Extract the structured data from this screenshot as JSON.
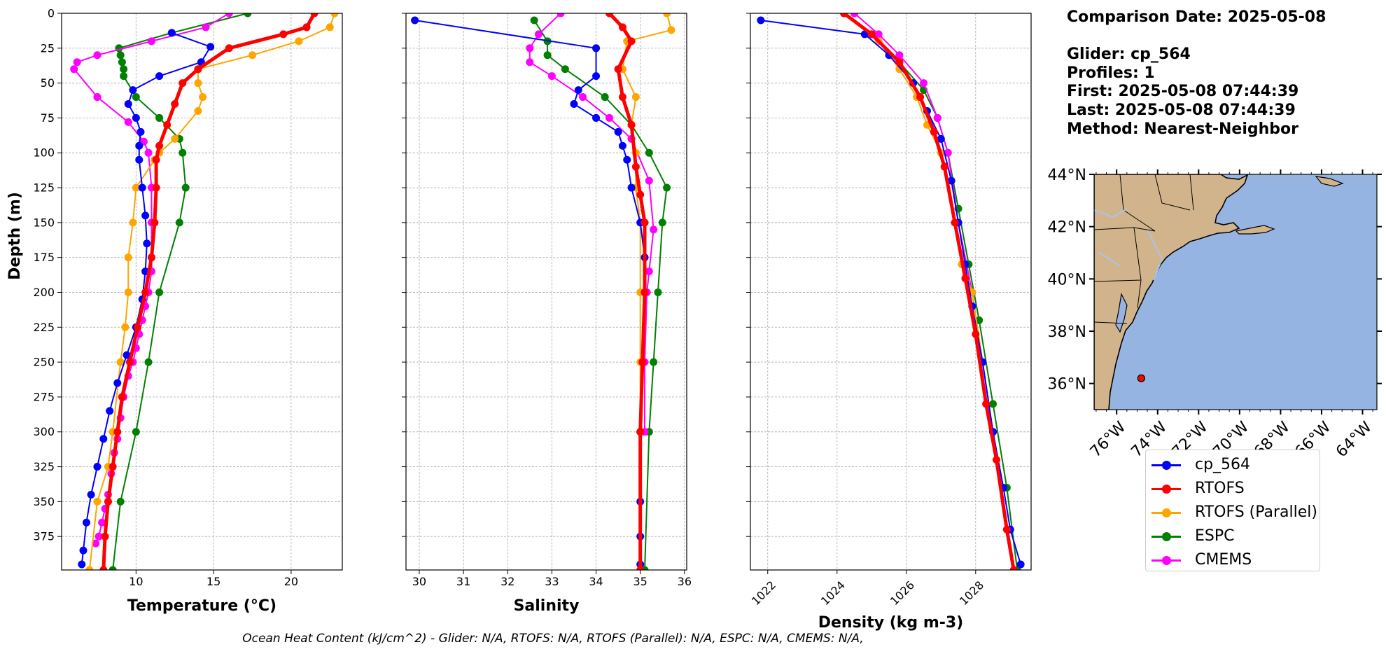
{
  "info": {
    "comparison_date": "Comparison Date: 2025-05-08",
    "glider": "Glider: cp_564",
    "profiles": "Profiles: 1",
    "first": "First: 2025-05-08 07:44:39",
    "last": "Last: 2025-05-08 07:44:39",
    "method": "Method: Nearest-Neighbor"
  },
  "footer": "Ocean Heat Content (kJ/cm^2) - Glider: N/A,  RTOFS: N/A,  RTOFS (Parallel): N/A,  ESPC: N/A,  CMEMS: N/A,",
  "legend": [
    {
      "label": "cp_564",
      "color": "#0000ff"
    },
    {
      "label": "RTOFS",
      "color": "#ff0000"
    },
    {
      "label": "RTOFS (Parallel)",
      "color": "#ffa500"
    },
    {
      "label": "ESPC",
      "color": "#008000"
    },
    {
      "label": "CMEMS",
      "color": "#ff00ff"
    }
  ],
  "chart_data": [
    {
      "type": "line",
      "xlabel": "Temperature (°C)",
      "ylabel": "Depth (m)",
      "xlim": [
        5.2,
        23.3
      ],
      "ylim": [
        399,
        0
      ],
      "xticks": [
        10,
        15,
        20
      ],
      "yticks": [
        0,
        25,
        50,
        75,
        100,
        125,
        150,
        175,
        200,
        225,
        250,
        275,
        300,
        325,
        350,
        375
      ],
      "grid": true,
      "series": [
        {
          "name": "cp_564",
          "color": "#0000ff",
          "x": [
            12.3,
            14.8,
            14.2,
            11.5,
            9.8,
            9.5,
            10.0,
            10.3,
            10.2,
            10.2,
            10.4,
            10.6,
            10.7,
            10.6,
            10.4,
            10.0,
            9.4,
            8.8,
            8.3,
            7.9,
            7.5,
            7.1,
            6.8,
            6.6,
            6.5
          ],
          "y": [
            14,
            24,
            35,
            45,
            55,
            65,
            75,
            85,
            95,
            105,
            125,
            145,
            165,
            185,
            205,
            225,
            245,
            265,
            285,
            305,
            325,
            345,
            365,
            385,
            395
          ]
        },
        {
          "name": "RTOFS",
          "color": "#ff0000",
          "x": [
            21.5,
            21.0,
            19.5,
            16.0,
            14.0,
            13.0,
            12.5,
            12.0,
            11.5,
            11.3,
            11.3,
            11.2,
            11.0,
            10.6,
            10.1,
            9.6,
            9.1,
            8.8,
            8.5,
            8.2,
            8.0,
            7.9
          ],
          "y": [
            0,
            10,
            15,
            25,
            40,
            50,
            65,
            80,
            95,
            105,
            125,
            150,
            175,
            200,
            225,
            250,
            275,
            300,
            325,
            350,
            375,
            399
          ]
        },
        {
          "name": "RTOFS (Parallel)",
          "color": "#ffa500",
          "x": [
            22.8,
            22.5,
            20.5,
            17.5,
            14.0,
            14.0,
            14.3,
            14.0,
            12.5,
            11.5,
            11.2,
            10.0,
            9.8,
            9.5,
            9.5,
            9.3,
            9.0,
            8.5,
            8.2,
            7.5,
            7.0
          ],
          "y": [
            0,
            10,
            20,
            30,
            40,
            50,
            60,
            70,
            90,
            100,
            105,
            125,
            150,
            175,
            200,
            225,
            250,
            300,
            325,
            350,
            399
          ]
        },
        {
          "name": "ESPC",
          "color": "#008000",
          "x": [
            17.2,
            12.3,
            8.9,
            9.0,
            9.1,
            9.2,
            9.2,
            10.0,
            11.5,
            12.8,
            13.0,
            13.2,
            12.8,
            11.5,
            10.8,
            10.0,
            9.0,
            8.5
          ],
          "y": [
            0,
            14,
            25,
            30,
            35,
            40,
            45,
            60,
            75,
            90,
            100,
            125,
            150,
            200,
            250,
            300,
            350,
            399
          ]
        },
        {
          "name": "CMEMS",
          "color": "#ff00ff",
          "x": [
            16.0,
            14.5,
            11.0,
            7.5,
            6.2,
            6.0,
            7.5,
            9.5,
            10.5,
            10.8,
            11.0,
            11.0,
            11.0,
            11.0,
            10.8,
            10.6,
            10.4,
            10.2,
            10.0,
            9.8,
            9.5,
            9.2,
            9.0,
            8.8,
            8.6,
            8.4,
            8.2,
            8.0,
            7.8,
            7.6,
            7.4
          ],
          "y": [
            0,
            10,
            20,
            30,
            35,
            40,
            60,
            78,
            92,
            100,
            125,
            150,
            175,
            185,
            200,
            210,
            220,
            230,
            240,
            250,
            260,
            275,
            290,
            305,
            315,
            330,
            345,
            355,
            365,
            375,
            380
          ]
        }
      ]
    },
    {
      "type": "line",
      "xlabel": "Salinity",
      "xlim": [
        29.7,
        36.05
      ],
      "ylim": [
        399,
        0
      ],
      "xticks": [
        30,
        31,
        32,
        33,
        34,
        35,
        36
      ],
      "grid": true,
      "series": [
        {
          "name": "cp_564",
          "color": "#0000ff",
          "x": [
            29.9,
            34.0,
            34.0,
            33.6,
            33.5,
            34.0,
            34.5,
            34.6,
            34.7,
            34.8,
            35.0,
            35.1,
            35.1,
            35.05,
            35.0,
            35.0,
            35.0,
            35.0
          ],
          "y": [
            5,
            25,
            45,
            55,
            65,
            75,
            85,
            95,
            105,
            125,
            150,
            175,
            200,
            250,
            300,
            350,
            375,
            395
          ]
        },
        {
          "name": "RTOFS",
          "color": "#ff0000",
          "x": [
            34.3,
            34.6,
            34.8,
            34.5,
            34.6,
            34.8,
            34.9,
            35.0,
            35.1,
            35.1,
            35.05,
            35.0,
            35.0
          ],
          "y": [
            0,
            10,
            20,
            40,
            60,
            80,
            110,
            130,
            150,
            200,
            250,
            300,
            399
          ]
        },
        {
          "name": "RTOFS (Parallel)",
          "color": "#ffa500",
          "x": [
            35.6,
            35.7,
            34.7,
            34.6,
            34.9,
            34.8,
            34.9,
            34.9,
            35.0,
            35.0,
            35.0,
            35.0
          ],
          "y": [
            0,
            12,
            20,
            40,
            60,
            80,
            100,
            125,
            150,
            200,
            250,
            300
          ]
        },
        {
          "name": "ESPC",
          "color": "#008000",
          "x": [
            32.6,
            32.9,
            32.9,
            33.3,
            34.2,
            34.8,
            35.2,
            35.6,
            35.5,
            35.4,
            35.3,
            35.2,
            35.1
          ],
          "y": [
            5,
            20,
            30,
            40,
            60,
            80,
            100,
            125,
            150,
            200,
            250,
            300,
            399
          ]
        },
        {
          "name": "CMEMS",
          "color": "#ff00ff",
          "x": [
            33.2,
            32.7,
            32.5,
            32.5,
            33.0,
            33.7,
            34.3,
            34.8,
            35.2,
            35.3,
            35.2,
            35.15,
            35.1,
            35.1
          ],
          "y": [
            0,
            15,
            25,
            35,
            45,
            60,
            75,
            90,
            120,
            155,
            185,
            200,
            250,
            300
          ]
        }
      ]
    },
    {
      "type": "line",
      "xlabel": "Density (kg m-3)",
      "xlim": [
        1021.5,
        1029.6
      ],
      "ylim": [
        399,
        0
      ],
      "xticks": [
        1022,
        1024,
        1026,
        1028
      ],
      "grid": true,
      "series": [
        {
          "name": "cp_564",
          "color": "#0000ff",
          "x": [
            1021.8,
            1024.8,
            1025.5,
            1026.2,
            1026.6,
            1027.0,
            1027.3,
            1027.5,
            1027.7,
            1027.9,
            1028.2,
            1028.5,
            1028.8,
            1029.0,
            1029.3
          ],
          "y": [
            5,
            15,
            30,
            50,
            70,
            90,
            120,
            150,
            180,
            210,
            250,
            300,
            340,
            370,
            395
          ]
        },
        {
          "name": "RTOFS",
          "color": "#ff0000",
          "x": [
            1024.2,
            1025.0,
            1025.8,
            1026.4,
            1026.8,
            1027.1,
            1027.4,
            1027.7,
            1028.0,
            1028.3,
            1028.6,
            1028.9,
            1029.1
          ],
          "y": [
            0,
            15,
            35,
            60,
            85,
            110,
            150,
            190,
            230,
            280,
            320,
            370,
            399
          ]
        },
        {
          "name": "RTOFS (Parallel)",
          "color": "#ffa500",
          "x": [
            1024.2,
            1025.2,
            1025.8,
            1026.3,
            1026.6,
            1027.0,
            1027.4,
            1027.6,
            1027.9,
            1028.2
          ],
          "y": [
            0,
            20,
            40,
            60,
            80,
            100,
            150,
            180,
            200,
            250
          ]
        },
        {
          "name": "ESPC",
          "color": "#008000",
          "x": [
            1024.2,
            1025.0,
            1025.8,
            1026.5,
            1026.9,
            1027.2,
            1027.5,
            1027.8,
            1028.1,
            1028.5,
            1028.9,
            1029.2
          ],
          "y": [
            0,
            15,
            35,
            55,
            75,
            100,
            140,
            180,
            220,
            280,
            340,
            399
          ]
        },
        {
          "name": "CMEMS",
          "color": "#ff00ff",
          "x": [
            1024.5,
            1025.2,
            1025.8,
            1026.5,
            1026.9,
            1027.2,
            1027.5,
            1027.9,
            1028.2,
            1028.5
          ],
          "y": [
            0,
            15,
            30,
            50,
            75,
            100,
            150,
            200,
            250,
            300
          ]
        }
      ]
    },
    {
      "type": "map",
      "lon_ticks": [
        "76°W",
        "74°W",
        "72°W",
        "70°W",
        "68°W",
        "66°W",
        "64°W"
      ],
      "lon_values": [
        -76,
        -74,
        -72,
        -70,
        -68,
        -66,
        -64
      ],
      "lat_ticks": [
        "44°N",
        "42°N",
        "40°N",
        "38°N",
        "36°N"
      ],
      "lat_values": [
        44,
        42,
        40,
        38,
        36
      ],
      "lon_range": [
        -77.1,
        -63.3
      ],
      "lat_range": [
        35.0,
        44.0
      ],
      "land_color": "#d2b48c",
      "ocean_color": "#96b4e1",
      "marker": {
        "lon": -74.8,
        "lat": 36.2,
        "color": "#ff0000"
      }
    }
  ]
}
